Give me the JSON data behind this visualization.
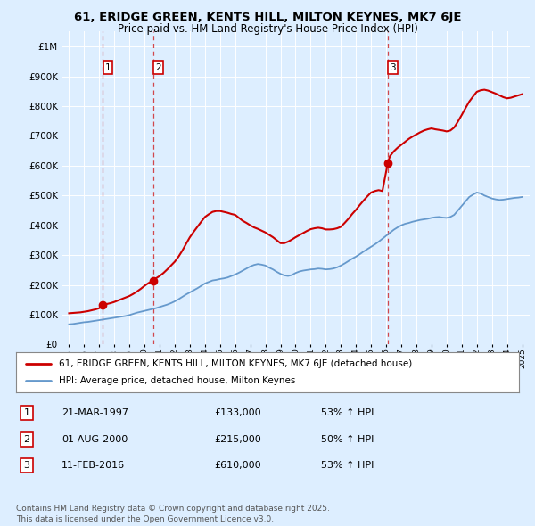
{
  "title": "61, ERIDGE GREEN, KENTS HILL, MILTON KEYNES, MK7 6JE",
  "subtitle": "Price paid vs. HM Land Registry's House Price Index (HPI)",
  "legend_line1": "61, ERIDGE GREEN, KENTS HILL, MILTON KEYNES, MK7 6JE (detached house)",
  "legend_line2": "HPI: Average price, detached house, Milton Keynes",
  "footnote": "Contains HM Land Registry data © Crown copyright and database right 2025.\nThis data is licensed under the Open Government Licence v3.0.",
  "transactions": [
    {
      "label": "1",
      "date": "21-MAR-1997",
      "price": 133000,
      "year": 1997.22,
      "hpi_pct": "53% ↑ HPI"
    },
    {
      "label": "2",
      "date": "01-AUG-2000",
      "price": 215000,
      "year": 2000.58,
      "hpi_pct": "50% ↑ HPI"
    },
    {
      "label": "3",
      "date": "11-FEB-2016",
      "price": 610000,
      "year": 2016.11,
      "hpi_pct": "53% ↑ HPI"
    }
  ],
  "price_paid_color": "#cc0000",
  "hpi_color": "#6699cc",
  "background_color": "#ddeeff",
  "ylim": [
    0,
    1050000
  ],
  "xlim": [
    1994.5,
    2025.5
  ],
  "yticks": [
    0,
    100000,
    200000,
    300000,
    400000,
    500000,
    600000,
    700000,
    800000,
    900000,
    1000000
  ],
  "hpi_data": {
    "years": [
      1995.0,
      1995.25,
      1995.5,
      1995.75,
      1996.0,
      1996.25,
      1996.5,
      1996.75,
      1997.0,
      1997.25,
      1997.5,
      1997.75,
      1998.0,
      1998.25,
      1998.5,
      1998.75,
      1999.0,
      1999.25,
      1999.5,
      1999.75,
      2000.0,
      2000.25,
      2000.5,
      2000.75,
      2001.0,
      2001.25,
      2001.5,
      2001.75,
      2002.0,
      2002.25,
      2002.5,
      2002.75,
      2003.0,
      2003.25,
      2003.5,
      2003.75,
      2004.0,
      2004.25,
      2004.5,
      2004.75,
      2005.0,
      2005.25,
      2005.5,
      2005.75,
      2006.0,
      2006.25,
      2006.5,
      2006.75,
      2007.0,
      2007.25,
      2007.5,
      2007.75,
      2008.0,
      2008.25,
      2008.5,
      2008.75,
      2009.0,
      2009.25,
      2009.5,
      2009.75,
      2010.0,
      2010.25,
      2010.5,
      2010.75,
      2011.0,
      2011.25,
      2011.5,
      2011.75,
      2012.0,
      2012.25,
      2012.5,
      2012.75,
      2013.0,
      2013.25,
      2013.5,
      2013.75,
      2014.0,
      2014.25,
      2014.5,
      2014.75,
      2015.0,
      2015.25,
      2015.5,
      2015.75,
      2016.0,
      2016.25,
      2016.5,
      2016.75,
      2017.0,
      2017.25,
      2017.5,
      2017.75,
      2018.0,
      2018.25,
      2018.5,
      2018.75,
      2019.0,
      2019.25,
      2019.5,
      2019.75,
      2020.0,
      2020.25,
      2020.5,
      2020.75,
      2021.0,
      2021.25,
      2021.5,
      2021.75,
      2022.0,
      2022.25,
      2022.5,
      2022.75,
      2023.0,
      2023.25,
      2023.5,
      2023.75,
      2024.0,
      2024.25,
      2024.5,
      2024.75,
      2025.0
    ],
    "values": [
      68000,
      69000,
      71000,
      73000,
      75000,
      76000,
      78000,
      80000,
      82000,
      84000,
      86000,
      88000,
      90000,
      92000,
      94000,
      96000,
      99000,
      103000,
      107000,
      110000,
      113000,
      116000,
      119000,
      122000,
      126000,
      130000,
      134000,
      139000,
      145000,
      152000,
      160000,
      168000,
      175000,
      182000,
      189000,
      197000,
      205000,
      210000,
      215000,
      217000,
      220000,
      222000,
      225000,
      230000,
      235000,
      241000,
      248000,
      255000,
      262000,
      267000,
      270000,
      268000,
      265000,
      258000,
      252000,
      244000,
      237000,
      232000,
      230000,
      233000,
      240000,
      245000,
      248000,
      250000,
      252000,
      253000,
      255000,
      254000,
      252000,
      253000,
      255000,
      259000,
      265000,
      272000,
      280000,
      288000,
      295000,
      303000,
      312000,
      320000,
      328000,
      336000,
      345000,
      355000,
      365000,
      375000,
      385000,
      393000,
      400000,
      405000,
      408000,
      412000,
      415000,
      418000,
      420000,
      422000,
      425000,
      427000,
      428000,
      426000,
      425000,
      428000,
      435000,
      450000,
      465000,
      480000,
      495000,
      503000,
      510000,
      507000,
      500000,
      495000,
      490000,
      487000,
      485000,
      486000,
      488000,
      490000,
      492000,
      493000,
      495000
    ]
  },
  "price_paid_data": {
    "years": [
      1995.0,
      1995.25,
      1995.5,
      1995.75,
      1996.0,
      1996.25,
      1996.5,
      1996.75,
      1997.0,
      1997.22,
      1997.5,
      1997.75,
      1998.0,
      1998.25,
      1998.5,
      1998.75,
      1999.0,
      1999.25,
      1999.5,
      1999.75,
      2000.0,
      2000.25,
      2000.58,
      2000.75,
      2001.0,
      2001.25,
      2001.5,
      2001.75,
      2002.0,
      2002.25,
      2002.5,
      2002.75,
      2003.0,
      2003.25,
      2003.5,
      2003.75,
      2004.0,
      2004.25,
      2004.5,
      2004.75,
      2005.0,
      2005.25,
      2005.5,
      2005.75,
      2006.0,
      2006.25,
      2006.5,
      2006.75,
      2007.0,
      2007.25,
      2007.5,
      2007.75,
      2008.0,
      2008.25,
      2008.5,
      2008.75,
      2009.0,
      2009.25,
      2009.5,
      2009.75,
      2010.0,
      2010.25,
      2010.5,
      2010.75,
      2011.0,
      2011.25,
      2011.5,
      2011.75,
      2012.0,
      2012.25,
      2012.5,
      2012.75,
      2013.0,
      2013.25,
      2013.5,
      2013.75,
      2014.0,
      2014.25,
      2014.5,
      2014.75,
      2015.0,
      2015.25,
      2015.5,
      2015.75,
      2016.11,
      2016.25,
      2016.5,
      2016.75,
      2017.0,
      2017.25,
      2017.5,
      2017.75,
      2018.0,
      2018.25,
      2018.5,
      2018.75,
      2019.0,
      2019.25,
      2019.5,
      2019.75,
      2020.0,
      2020.25,
      2020.5,
      2020.75,
      2021.0,
      2021.25,
      2021.5,
      2021.75,
      2022.0,
      2022.25,
      2022.5,
      2022.75,
      2023.0,
      2023.25,
      2023.5,
      2023.75,
      2024.0,
      2024.25,
      2024.5,
      2024.75,
      2025.0
    ],
    "values": [
      105000,
      106000,
      107000,
      108000,
      110000,
      112000,
      115000,
      118000,
      122000,
      133000,
      136000,
      139000,
      143000,
      148000,
      153000,
      158000,
      163000,
      170000,
      178000,
      187000,
      197000,
      206000,
      215000,
      222000,
      230000,
      240000,
      252000,
      265000,
      278000,
      295000,
      315000,
      338000,
      360000,
      378000,
      395000,
      412000,
      428000,
      437000,
      445000,
      448000,
      448000,
      445000,
      442000,
      438000,
      435000,
      425000,
      415000,
      408000,
      400000,
      393000,
      388000,
      382000,
      376000,
      368000,
      360000,
      350000,
      340000,
      340000,
      345000,
      352000,
      360000,
      367000,
      374000,
      381000,
      387000,
      390000,
      392000,
      390000,
      386000,
      386000,
      387000,
      390000,
      395000,
      408000,
      422000,
      438000,
      452000,
      468000,
      483000,
      497000,
      510000,
      515000,
      518000,
      515000,
      610000,
      632000,
      648000,
      660000,
      670000,
      680000,
      690000,
      698000,
      705000,
      712000,
      718000,
      722000,
      725000,
      722000,
      720000,
      718000,
      715000,
      718000,
      728000,
      748000,
      770000,
      793000,
      815000,
      832000,
      848000,
      853000,
      855000,
      852000,
      847000,
      842000,
      836000,
      830000,
      826000,
      828000,
      832000,
      836000,
      840000
    ]
  }
}
